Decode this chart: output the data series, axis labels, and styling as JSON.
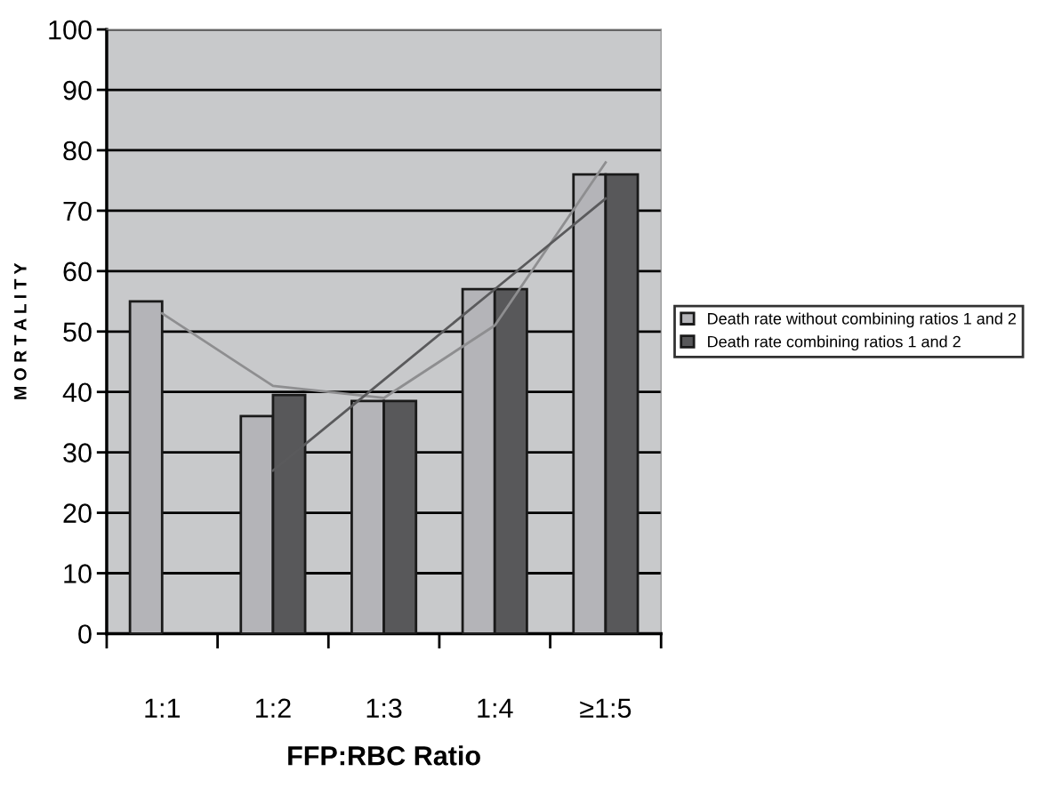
{
  "chart_data": {
    "type": "bar",
    "xlabel": "FFP:RBC Ratio",
    "ylabel": "M O R T A L I T Y",
    "categories": [
      "1:1",
      "1:2",
      "1:3",
      "1:4",
      "≥1:5"
    ],
    "series": [
      {
        "name": "Death rate without combining ratios 1 and 2",
        "color": "#b4b4b8",
        "values": [
          55,
          36,
          38.5,
          57,
          76
        ]
      },
      {
        "name": "Death rate combining ratios 1 and 2",
        "color": "#58585a",
        "values": [
          null,
          39.5,
          38.5,
          57,
          76
        ]
      },
      {
        "type": "line",
        "color": "#8e8e90",
        "values": [
          53,
          41,
          39,
          51,
          78
        ]
      },
      {
        "type": "line",
        "color": "#5a5a5c",
        "values": [
          null,
          27,
          42,
          57,
          72
        ]
      }
    ],
    "ylim": [
      0,
      100
    ],
    "yticks": [
      0,
      10,
      20,
      30,
      40,
      50,
      60,
      70,
      80,
      90,
      100
    ],
    "grid": "y",
    "legend": "right"
  }
}
